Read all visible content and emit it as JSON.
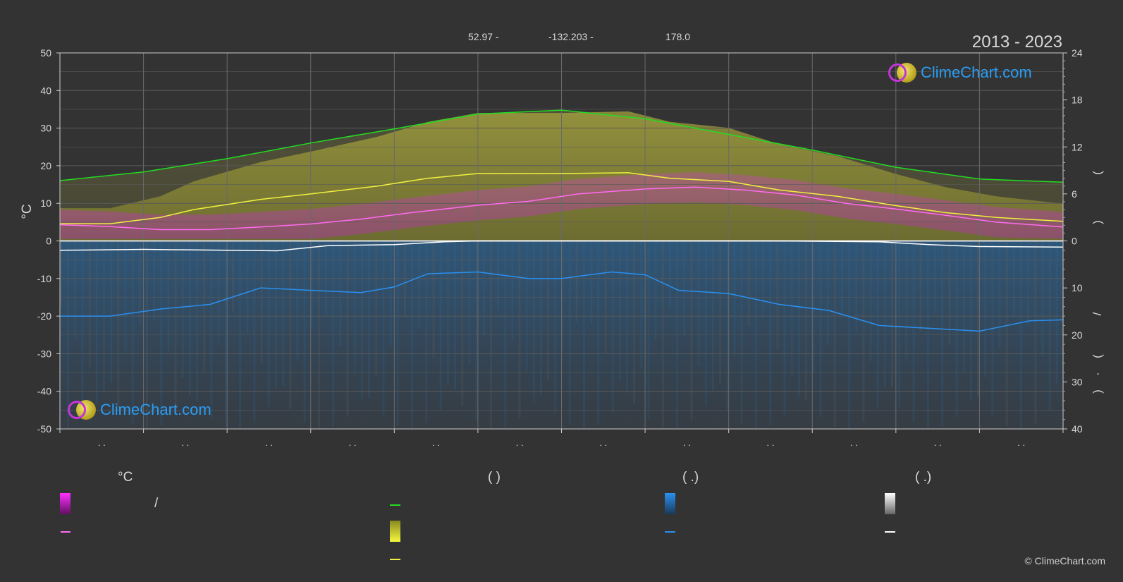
{
  "header": {
    "lat": "52.97 -",
    "lon": "-132.203 -",
    "elev": "178.0",
    "years": "2013 - 2023"
  },
  "logo_text": "ClimeChart.com",
  "copyright": "© ClimeChart.com",
  "colors": {
    "background": "#333333",
    "daylight": "#22dd22",
    "sunshine": "#f0f040",
    "temperature_mean": "#ff6bf0",
    "temperature_band": "#e020e0",
    "rain": "#2a7fd0",
    "snow": "#ffffff",
    "grid": "#5a5a5a"
  },
  "legend": {
    "col1": {
      "heading": "°C",
      "band_label": "/"
    },
    "col2": {
      "heading": "(          )"
    },
    "col3": {
      "heading": "(   .)"
    },
    "col4": {
      "heading": "(   .)"
    }
  },
  "chart_data": {
    "type": "line",
    "months_x": [
      0.5,
      1.5,
      2.5,
      3.5,
      4.5,
      5.5,
      6.5,
      7.5,
      8.5,
      9.5,
      10.5,
      11.5
    ],
    "x_tick_labels": ". .",
    "y_left": {
      "label": "°C",
      "lim": [
        -50,
        50
      ],
      "ticks": [
        50,
        40,
        30,
        20,
        10,
        0,
        -10,
        -20,
        -30,
        -40,
        -50
      ]
    },
    "y_right_top": {
      "lim": [
        0,
        24
      ],
      "ticks": [
        24,
        18,
        12,
        6,
        0
      ],
      "label_glyphs": [
        "(",
        ")",
        "(",
        ")"
      ]
    },
    "y_right_bottom": {
      "lim": [
        0,
        40
      ],
      "ticks": [
        0,
        10,
        20,
        30,
        40
      ],
      "label_glyphs": [
        "/",
        "(",
        "·",
        ")"
      ]
    },
    "grid": true,
    "series": [
      {
        "key": "daylight",
        "axis": "hours",
        "points": [
          [
            0,
            7.7
          ],
          [
            1,
            8.8
          ],
          [
            2,
            10.5
          ],
          [
            3,
            12.5
          ],
          [
            4,
            14.3
          ],
          [
            5,
            16.2
          ],
          [
            6,
            16.7
          ],
          [
            7,
            15.6
          ],
          [
            8,
            13.6
          ],
          [
            9,
            11.6
          ],
          [
            10,
            9.4
          ],
          [
            11,
            7.9
          ],
          [
            12,
            7.5
          ]
        ]
      },
      {
        "key": "sunshine",
        "axis": "hours",
        "points": [
          [
            0,
            2.2
          ],
          [
            0.6,
            2.2
          ],
          [
            1.2,
            3.0
          ],
          [
            1.6,
            4.0
          ],
          [
            2.4,
            5.3
          ],
          [
            3.0,
            6.0
          ],
          [
            3.8,
            7.0
          ],
          [
            4.4,
            8.0
          ],
          [
            5.0,
            8.6
          ],
          [
            6.0,
            8.6
          ],
          [
            6.8,
            8.7
          ],
          [
            7.3,
            8.0
          ],
          [
            8.0,
            7.6
          ],
          [
            8.6,
            6.5
          ],
          [
            9.3,
            5.7
          ],
          [
            10.0,
            4.5
          ],
          [
            10.6,
            3.6
          ],
          [
            11.2,
            3.0
          ],
          [
            12,
            2.5
          ]
        ]
      },
      {
        "key": "temp_mean",
        "axis": "celsius",
        "points": [
          [
            0,
            4.3
          ],
          [
            0.6,
            3.8
          ],
          [
            1.2,
            3.0
          ],
          [
            1.8,
            3.0
          ],
          [
            2.4,
            3.7
          ],
          [
            3.0,
            4.5
          ],
          [
            3.6,
            5.8
          ],
          [
            4.2,
            7.5
          ],
          [
            5.0,
            9.5
          ],
          [
            5.6,
            10.5
          ],
          [
            6.2,
            12.5
          ],
          [
            7.0,
            13.8
          ],
          [
            7.6,
            14.3
          ],
          [
            8.2,
            13.5
          ],
          [
            8.8,
            12.2
          ],
          [
            9.4,
            10.0
          ],
          [
            10.0,
            8.5
          ],
          [
            10.6,
            6.8
          ],
          [
            11.2,
            5.0
          ],
          [
            12,
            3.7
          ]
        ]
      },
      {
        "key": "snow",
        "axis": "precip",
        "points": [
          [
            0,
            2.0
          ],
          [
            1,
            1.8
          ],
          [
            2,
            2.0
          ],
          [
            2.6,
            2.1
          ],
          [
            3.2,
            1.0
          ],
          [
            4.0,
            0.8
          ],
          [
            4.6,
            0.2
          ],
          [
            5.0,
            0
          ],
          [
            8.5,
            0
          ],
          [
            9.8,
            0.2
          ],
          [
            10.4,
            0.8
          ],
          [
            11,
            1.2
          ],
          [
            12,
            1.3
          ]
        ]
      },
      {
        "key": "rain",
        "axis": "precip",
        "points": [
          [
            0,
            16.0
          ],
          [
            0.6,
            16.0
          ],
          [
            1.2,
            14.5
          ],
          [
            1.8,
            13.5
          ],
          [
            2.4,
            10.0
          ],
          [
            3.0,
            10.5
          ],
          [
            3.6,
            11.0
          ],
          [
            4.0,
            9.8
          ],
          [
            4.4,
            7.0
          ],
          [
            5.0,
            6.6
          ],
          [
            5.6,
            8.0
          ],
          [
            6.0,
            8.0
          ],
          [
            6.6,
            6.6
          ],
          [
            7.0,
            7.2
          ],
          [
            7.4,
            10.5
          ],
          [
            8.0,
            11.2
          ],
          [
            8.6,
            13.5
          ],
          [
            9.2,
            14.8
          ],
          [
            9.8,
            18.0
          ],
          [
            10.4,
            18.6
          ],
          [
            11.0,
            19.2
          ],
          [
            11.6,
            17.0
          ],
          [
            12,
            16.8
          ]
        ]
      }
    ]
  }
}
